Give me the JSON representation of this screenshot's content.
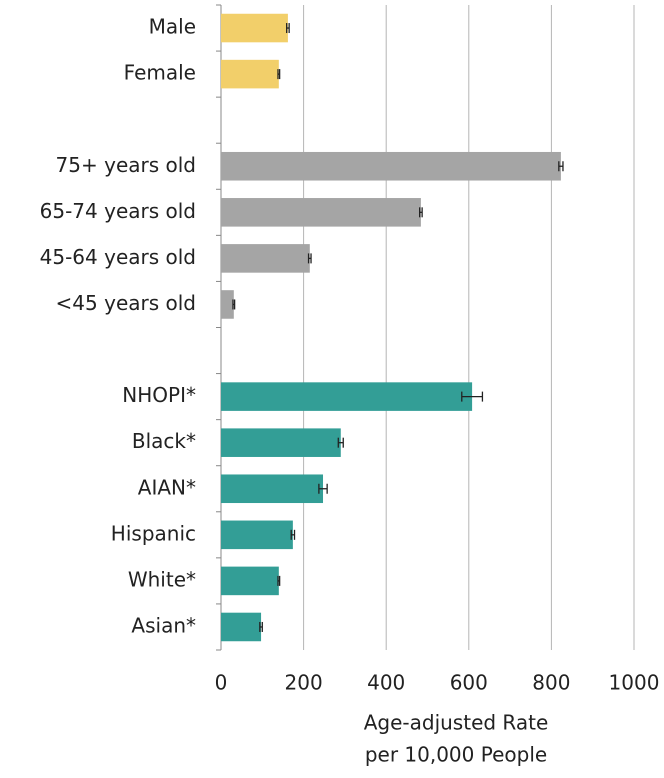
{
  "chart_data": {
    "type": "bar",
    "orientation": "horizontal",
    "categories": [
      "Male",
      "Female",
      null,
      "75+ years old",
      "65-74 years old",
      "45-64 years old",
      "<45 years old",
      null,
      "NHOPI*",
      "Black*",
      "AIAN*",
      "Hispanic",
      "White*",
      "Asian*"
    ],
    "values": [
      162,
      140,
      null,
      823,
      484,
      215,
      31,
      null,
      608,
      290,
      247,
      174,
      140,
      97
    ],
    "errors": [
      3,
      2,
      null,
      5,
      3,
      3,
      2,
      null,
      25,
      6,
      10,
      4,
      2,
      3
    ],
    "colors": [
      "#f2cf6a",
      "#f2cf6a",
      null,
      "#a5a5a5",
      "#a5a5a5",
      "#a5a5a5",
      "#a5a5a5",
      null,
      "#339e96",
      "#339e96",
      "#339e96",
      "#339e96",
      "#339e96",
      "#339e96"
    ],
    "xlim": [
      0,
      1000
    ],
    "xticks": [
      0,
      200,
      400,
      600,
      800,
      1000
    ],
    "grid": true,
    "xlabel": [
      "Age-adjusted Rate",
      "per 10,000 People"
    ]
  }
}
